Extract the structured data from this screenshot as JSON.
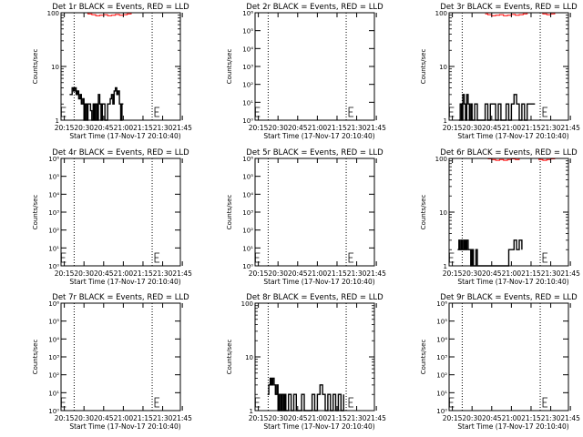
{
  "figure": {
    "x_axis_title": "Start Time (17-Nov-17 20:10:40)",
    "y_axis_title": "Counts/sec",
    "x_ticks": [
      "20:15",
      "20:30",
      "20:45",
      "21:00",
      "21:15",
      "21:30",
      "21:45"
    ],
    "vlines_minutes": [
      22.5,
      82
    ]
  },
  "chart_data": [
    {
      "type": "line",
      "title": "Det 1r BLACK = Events, RED = LLD",
      "yscale": "log",
      "ylim": [
        1,
        100
      ],
      "yticks": [
        "1",
        "10",
        "100"
      ],
      "xlim": [
        12.5,
        103.5
      ],
      "series": [
        {
          "name": "Events",
          "color": "#000000",
          "x": [
            19,
            21,
            22,
            23,
            24,
            25,
            26,
            27,
            28,
            29,
            30,
            31,
            32,
            33,
            34,
            35,
            36,
            37,
            38,
            39,
            40,
            41,
            42,
            43,
            44,
            45,
            46,
            47,
            48,
            49,
            50,
            51,
            52,
            53,
            54,
            55,
            56,
            57,
            58,
            59,
            60
          ],
          "y": [
            3,
            4,
            3.5,
            4,
            3,
            3.5,
            2.5,
            3,
            2,
            2.5,
            1,
            2,
            1,
            2,
            2,
            1.5,
            1,
            2,
            1,
            2,
            1,
            3,
            2,
            1,
            2,
            2,
            1,
            1,
            2,
            2,
            2.5,
            3,
            2,
            3.5,
            4,
            3,
            3.5,
            2,
            1,
            2,
            2
          ]
        },
        {
          "name": "LLD",
          "color": "#ff0000",
          "x": [
            30,
            33,
            36,
            39,
            42,
            45,
            48,
            51,
            54,
            57,
            60,
            63,
            66,
            69,
            72,
            75,
            78,
            81,
            84,
            87,
            90,
            93
          ],
          "y": [
            100,
            95,
            92,
            88,
            90,
            92,
            88,
            90,
            93,
            90,
            92,
            95,
            100,
            100,
            100,
            100,
            100,
            100,
            100,
            100,
            100,
            100
          ]
        }
      ]
    },
    {
      "type": "line",
      "title": "Det 2r BLACK = Events, RED = LLD",
      "yscale": "log",
      "ylim": [
        1,
        1000000
      ],
      "yticks": [
        "10⁰",
        "10¹",
        "10²",
        "10³",
        "10⁴",
        "10⁵",
        "10⁶"
      ],
      "xlim": [
        12.5,
        103.5
      ],
      "series": []
    },
    {
      "type": "line",
      "title": "Det 3r BLACK = Events, RED = LLD",
      "yscale": "log",
      "ylim": [
        1,
        100
      ],
      "yticks": [
        "1",
        "10",
        "100"
      ],
      "xlim": [
        12.5,
        103.5
      ],
      "series": [
        {
          "name": "Events",
          "color": "#000000",
          "x": [
            20,
            21,
            22,
            23,
            24,
            25,
            26,
            27,
            28,
            29,
            30,
            32,
            34,
            36,
            40,
            42,
            44,
            48,
            50,
            52,
            56,
            58,
            60,
            62,
            64,
            66,
            68,
            70,
            72,
            76,
            78
          ],
          "y": [
            1,
            2,
            1,
            3,
            2,
            1,
            3,
            2,
            1,
            2,
            1,
            2,
            1,
            1,
            2,
            1,
            2,
            1,
            2,
            1,
            2,
            1,
            2,
            3,
            2,
            1,
            2,
            1,
            2,
            2,
            2
          ]
        },
        {
          "name": "LLD",
          "color": "#ff0000",
          "x": [
            40,
            42,
            45,
            48,
            51,
            54,
            57,
            60,
            63,
            66,
            69,
            72,
            75,
            78,
            81,
            84,
            87,
            90,
            93
          ],
          "y": [
            95,
            92,
            88,
            90,
            92,
            88,
            90,
            93,
            90,
            92,
            95,
            100,
            100,
            100,
            100,
            95,
            92,
            95,
            100
          ]
        }
      ]
    },
    {
      "type": "line",
      "title": "Det 4r BLACK = Events, RED = LLD",
      "yscale": "log",
      "ylim": [
        1,
        1000000
      ],
      "yticks": [
        "10⁰",
        "10¹",
        "10²",
        "10³",
        "10⁴",
        "10⁵",
        "10⁶"
      ],
      "xlim": [
        12.5,
        103.5
      ],
      "series": []
    },
    {
      "type": "line",
      "title": "Det 5r BLACK = Events, RED = LLD",
      "yscale": "log",
      "ylim": [
        1,
        1000000
      ],
      "yticks": [
        "10⁰",
        "10¹",
        "10²",
        "10³",
        "10⁴",
        "10⁵",
        "10⁶"
      ],
      "xlim": [
        12.5,
        103.5
      ],
      "series": []
    },
    {
      "type": "line",
      "title": "Det 6r BLACK = Events, RED = LLD",
      "yscale": "log",
      "ylim": [
        1,
        100
      ],
      "yticks": [
        "1",
        "10",
        "100"
      ],
      "xlim": [
        12.5,
        103.5
      ],
      "series": [
        {
          "name": "Events",
          "color": "#000000",
          "x": [
            19,
            20,
            21,
            22,
            23,
            24,
            25,
            26,
            27,
            28,
            29,
            30,
            31,
            32,
            33,
            34,
            58,
            60,
            62,
            64,
            66,
            68
          ],
          "y": [
            2,
            3,
            2,
            3,
            2,
            3,
            2,
            3,
            2,
            2,
            1,
            2,
            1,
            1,
            2,
            1,
            2,
            2,
            3,
            2,
            3,
            2
          ]
        },
        {
          "name": "LLD",
          "color": "#ff0000",
          "x": [
            42,
            45,
            48,
            51,
            54,
            57,
            60,
            63,
            66,
            69,
            72,
            75,
            78,
            81,
            84,
            87,
            90,
            93
          ],
          "y": [
            98,
            95,
            92,
            95,
            92,
            95,
            98,
            95,
            100,
            100,
            100,
            100,
            100,
            95,
            92,
            95,
            98,
            100
          ]
        }
      ]
    },
    {
      "type": "line",
      "title": "Det 7r BLACK = Events, RED = LLD",
      "yscale": "log",
      "ylim": [
        1,
        1000000
      ],
      "yticks": [
        "10⁰",
        "10¹",
        "10²",
        "10³",
        "10⁴",
        "10⁵",
        "10⁶"
      ],
      "xlim": [
        12.5,
        103.5
      ],
      "series": []
    },
    {
      "type": "line",
      "title": "Det 8r BLACK = Events, RED = LLD",
      "yscale": "log",
      "ylim": [
        1,
        100
      ],
      "yticks": [
        "1",
        "10",
        "100"
      ],
      "xlim": [
        12.5,
        103.5
      ],
      "series": [
        {
          "name": "Events",
          "color": "#000000",
          "x": [
            22,
            23,
            24,
            25,
            26,
            27,
            28,
            29,
            30,
            31,
            32,
            33,
            34,
            35,
            36,
            38,
            40,
            42,
            44,
            48,
            50,
            56,
            58,
            60,
            62,
            64,
            66,
            68,
            70,
            72,
            74,
            76,
            78,
            80
          ],
          "y": [
            2,
            3,
            4,
            3,
            4,
            3,
            2,
            3,
            1,
            2,
            1,
            2,
            1,
            2,
            1,
            2,
            1,
            2,
            1,
            2,
            1,
            2,
            1,
            2,
            3,
            2,
            1,
            2,
            1,
            2,
            1,
            2,
            1,
            2
          ]
        }
      ]
    },
    {
      "type": "line",
      "title": "Det 9r BLACK = Events, RED = LLD",
      "yscale": "log",
      "ylim": [
        1,
        1000000
      ],
      "yticks": [
        "10⁰",
        "10¹",
        "10²",
        "10³",
        "10⁴",
        "10⁵",
        "10⁶"
      ],
      "xlim": [
        12.5,
        103.5
      ],
      "series": []
    }
  ]
}
